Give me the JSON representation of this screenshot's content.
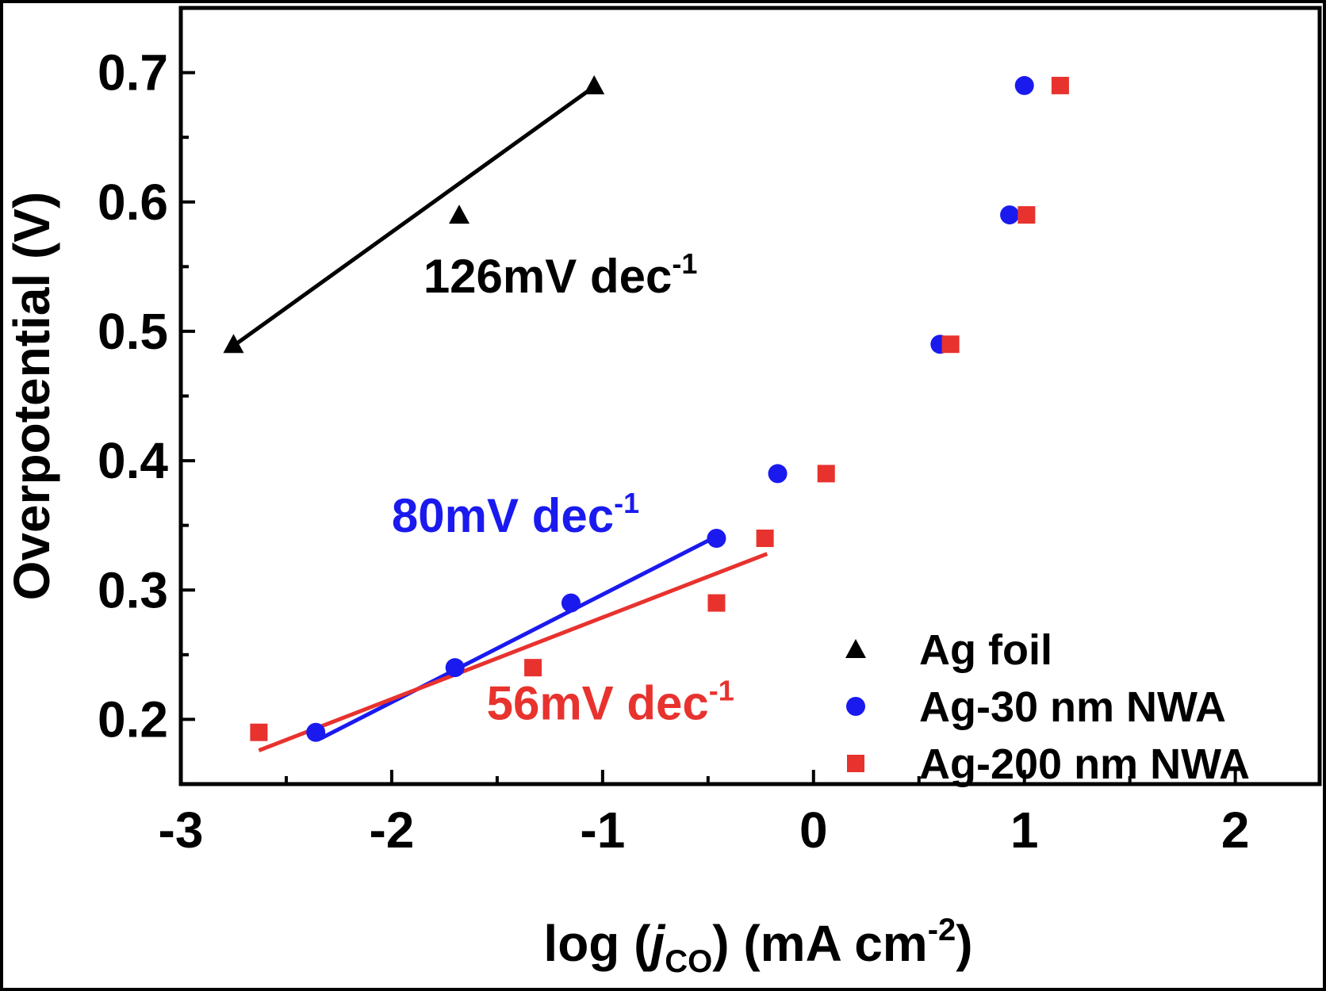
{
  "chart_data": {
    "type": "scatter",
    "xlabel_parts": {
      "prefix": "log (",
      "var": "j",
      "sub": "CO",
      "mid": ") (mA cm",
      "sup": "-2",
      "suffix": ")"
    },
    "ylabel": "Overpotential (V)",
    "xlim": [
      -3,
      2.4
    ],
    "ylim": [
      0.15,
      0.75
    ],
    "xticks": [
      -3,
      -2,
      -1,
      0,
      1,
      2
    ],
    "xtick_labels": [
      "-3",
      "-2",
      "-1",
      "0",
      "1",
      "2"
    ],
    "yticks": [
      0.2,
      0.3,
      0.4,
      0.5,
      0.6,
      0.7
    ],
    "ytick_labels": [
      "0.2",
      "0.3",
      "0.4",
      "0.5",
      "0.6",
      "0.7"
    ],
    "legend_position": "bottom-right",
    "series": [
      {
        "name": "Ag foil",
        "marker": "triangle",
        "color": "#000000",
        "points": [
          [
            -2.75,
            0.49
          ],
          [
            -1.68,
            0.59
          ],
          [
            -1.04,
            0.69
          ]
        ]
      },
      {
        "name": "Ag-30 nm NWA",
        "marker": "circle",
        "color": "#1a1aef",
        "points": [
          [
            -2.36,
            0.19
          ],
          [
            -1.7,
            0.24
          ],
          [
            -1.15,
            0.29
          ],
          [
            -0.46,
            0.34
          ],
          [
            -0.17,
            0.39
          ],
          [
            0.6,
            0.49
          ],
          [
            0.93,
            0.59
          ],
          [
            1.0,
            0.69
          ]
        ]
      },
      {
        "name": "Ag-200 nm NWA",
        "marker": "square",
        "color": "#e8322e",
        "points": [
          [
            -2.63,
            0.19
          ],
          [
            -1.33,
            0.24
          ],
          [
            -0.46,
            0.29
          ],
          [
            -0.23,
            0.34
          ],
          [
            0.06,
            0.39
          ],
          [
            0.65,
            0.49
          ],
          [
            1.01,
            0.59
          ],
          [
            1.17,
            0.69
          ]
        ]
      }
    ],
    "fits": [
      {
        "series": "Ag foil",
        "color": "#000000",
        "from": [
          -2.74,
          0.49
        ],
        "to": [
          -1.05,
          0.688
        ],
        "label": "126mV dec",
        "label_sup": "-1",
        "label_at": [
          -1.85,
          0.53
        ]
      },
      {
        "series": "Ag-30 nm NWA",
        "color": "#1a1aef",
        "from": [
          -2.34,
          0.185
        ],
        "to": [
          -0.49,
          0.339
        ],
        "label": "80mV dec",
        "label_sup": "-1",
        "label_at": [
          -2.0,
          0.345
        ]
      },
      {
        "series": "Ag-200 nm NWA",
        "color": "#e8322e",
        "from": [
          -2.63,
          0.176
        ],
        "to": [
          -0.22,
          0.328
        ],
        "label": "56mV dec",
        "label_sup": "-1",
        "label_at": [
          -1.55,
          0.2
        ]
      }
    ]
  }
}
